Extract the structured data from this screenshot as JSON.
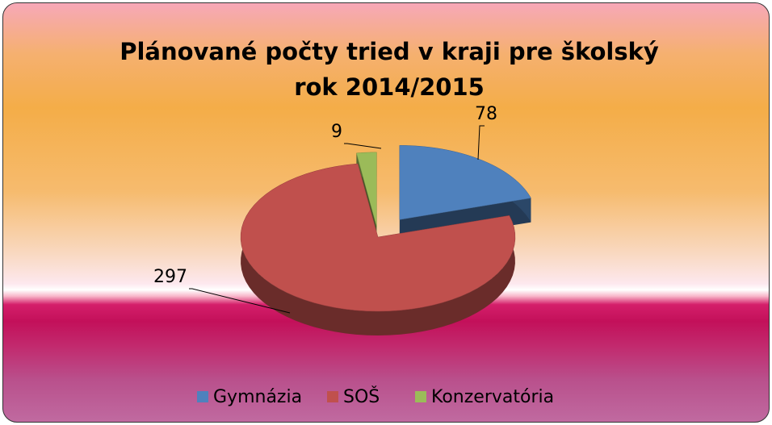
{
  "chart_data": {
    "type": "pie",
    "title": "Plánované počty tried v kraji pre školský rok 2014/2015",
    "categories": [
      "Gymnázia",
      "SOŠ",
      "Konzervatória"
    ],
    "values": [
      78,
      297,
      9
    ],
    "colors": [
      "#4f81bd",
      "#c0504d",
      "#9bbb59"
    ],
    "legend": "bottom"
  }
}
